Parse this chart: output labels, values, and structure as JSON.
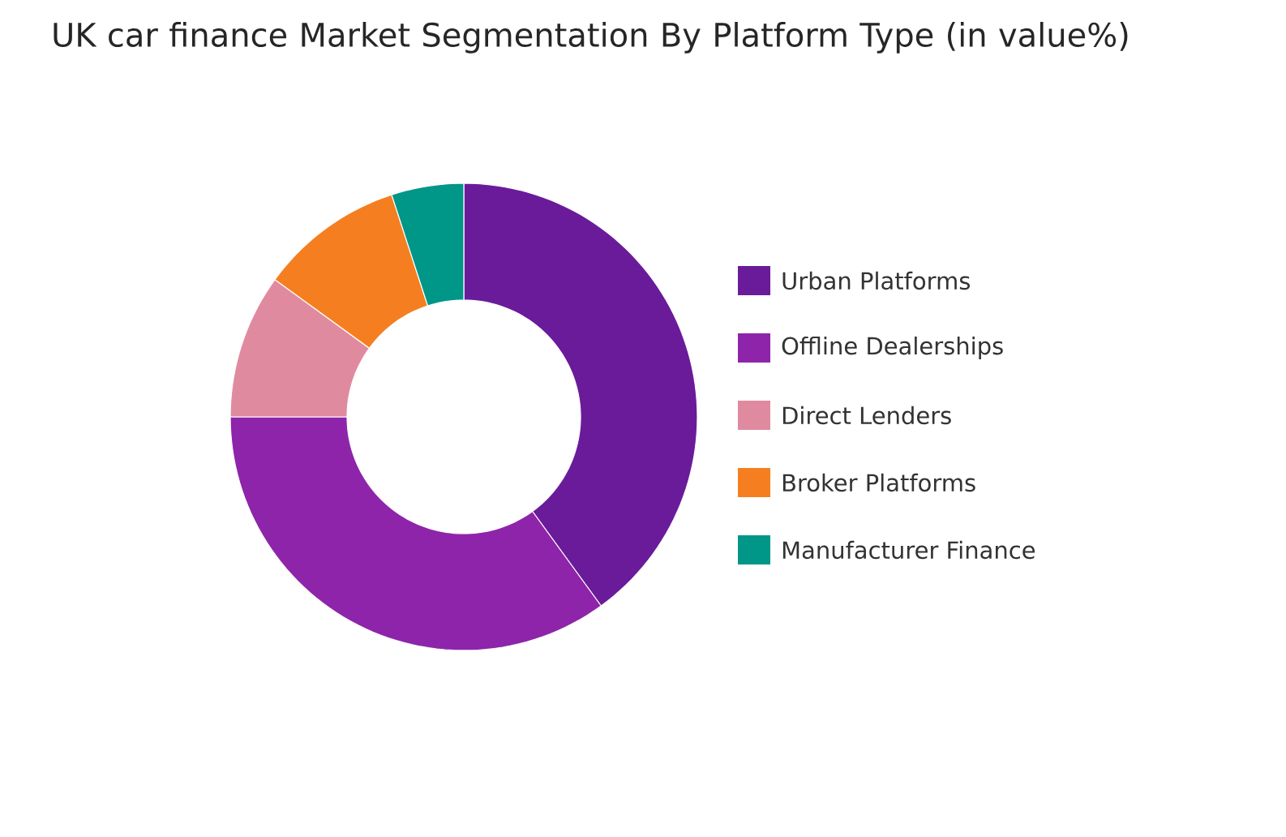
{
  "chart_data": {
    "type": "donut",
    "title": "UK car finance Market Segmentation By Platform Type (in value%)",
    "categories": [
      "Urban Platforms",
      "Offline Dealerships",
      "Direct Lenders",
      "Broker Platforms",
      "Manufacturer Finance"
    ],
    "values": [
      40,
      35,
      10,
      10,
      5
    ],
    "colors": [
      "#6a1b9a",
      "#8e24aa",
      "#e08aa0",
      "#f57f20",
      "#009688"
    ],
    "legend": "right"
  }
}
